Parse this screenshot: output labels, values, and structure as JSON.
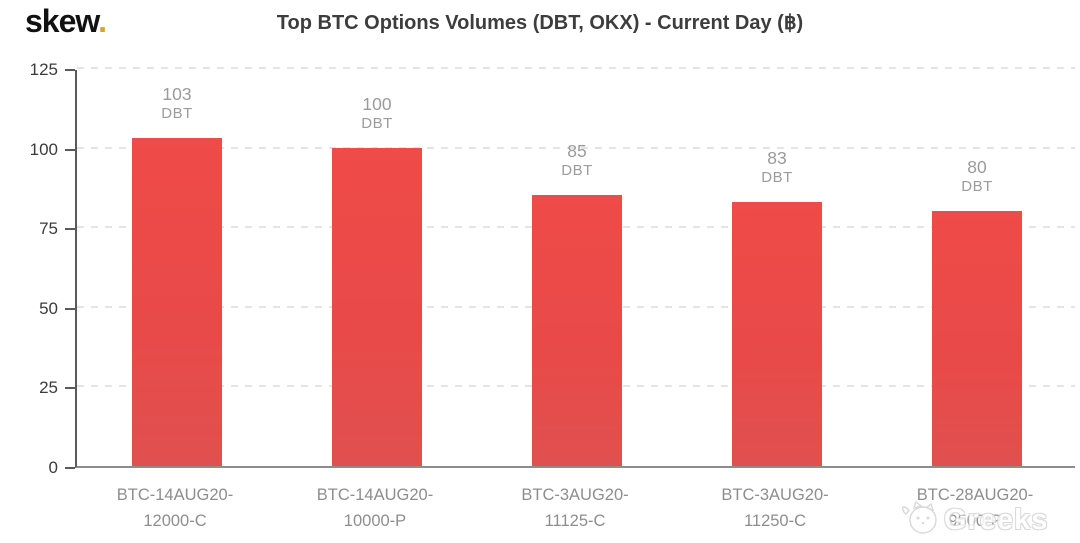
{
  "header": {
    "logo_text": "skew",
    "logo_dot": ".",
    "title": "Top BTC Options Volumes (DBT, OKX) - Current Day (฿)"
  },
  "watermark": {
    "text": "Greeks",
    "icon": "cat-face"
  },
  "chart_data": {
    "type": "bar",
    "title": "Top BTC Options Volumes (DBT, OKX) - Current Day (฿)",
    "categories": [
      "BTC-14AUG20-12000-C",
      "BTC-14AUG20-10000-P",
      "BTC-3AUG20-11125-C",
      "BTC-3AUG20-11250-C",
      "BTC-28AUG20-9500-P"
    ],
    "category_lines": [
      [
        "BTC-14AUG20-",
        "12000-C"
      ],
      [
        "BTC-14AUG20-",
        "10000-P"
      ],
      [
        "BTC-3AUG20-",
        "11125-C"
      ],
      [
        "BTC-3AUG20-",
        "11250-C"
      ],
      [
        "BTC-28AUG20-",
        "9500-P"
      ]
    ],
    "values": [
      103,
      100,
      85,
      83,
      80
    ],
    "bar_unit": "DBT",
    "ylim": [
      0,
      125
    ],
    "y_ticks": [
      0,
      25,
      50,
      75,
      100,
      125
    ],
    "grid": "dashed-horizontal",
    "legend": "none",
    "bar_color": "#e84a49",
    "value_label_color": "#9b9b9b",
    "axis_label_color": "#3b3b3b",
    "category_label_color": "#8e8e8e",
    "gridline_color": "#e4e4e4",
    "brand_accent_color": "#d8a22e"
  }
}
